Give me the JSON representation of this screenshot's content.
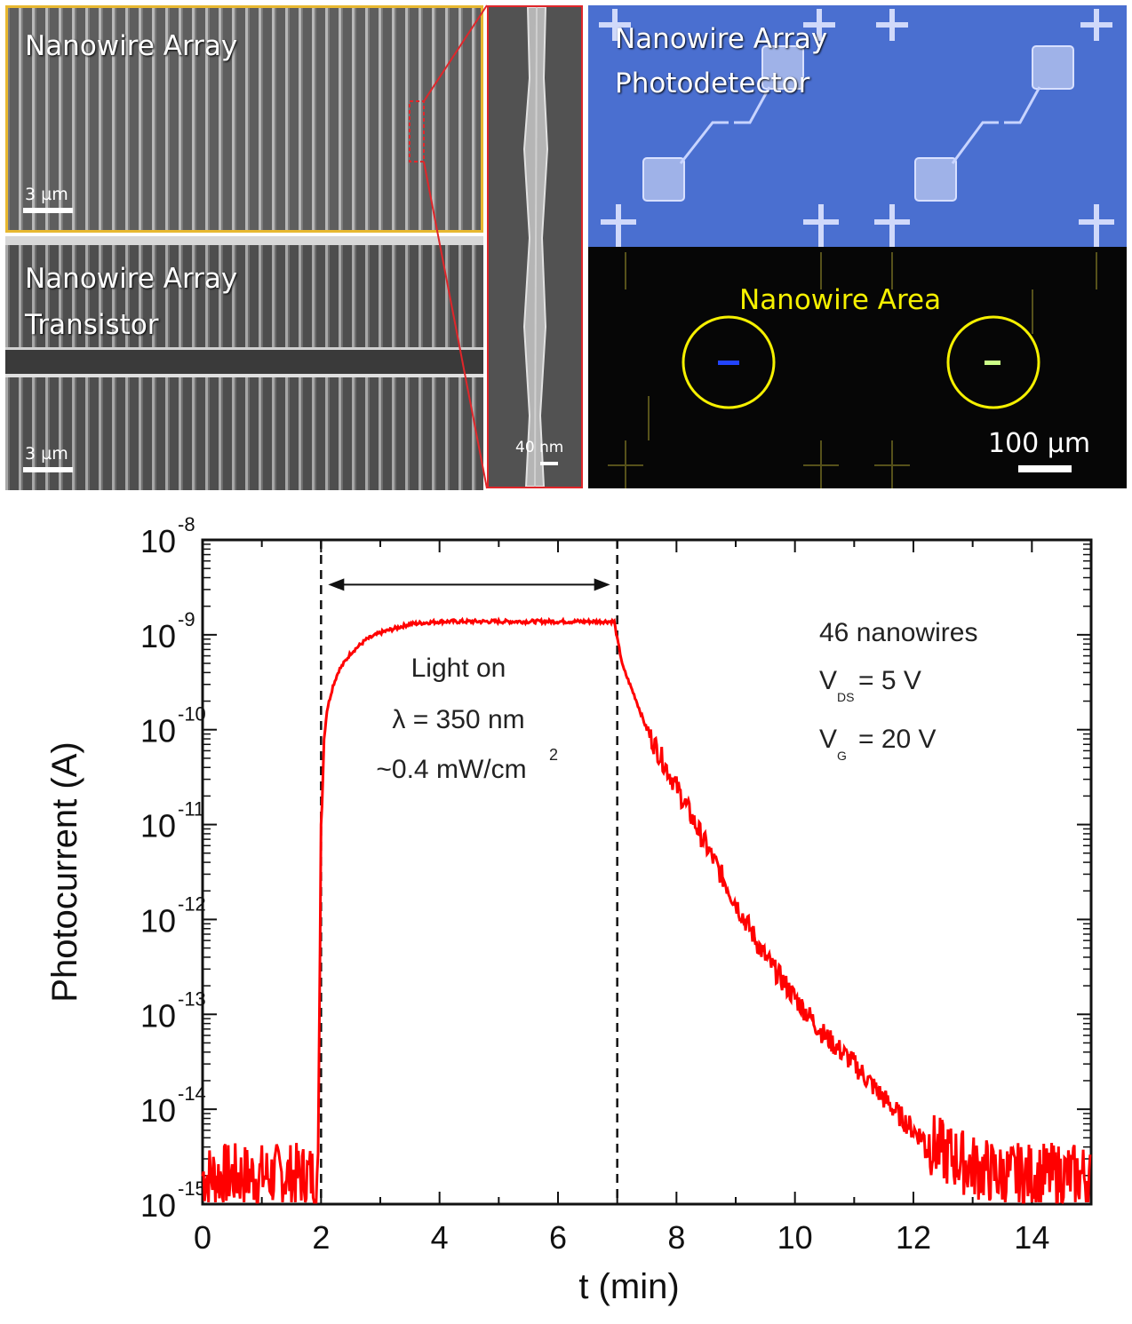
{
  "panels": {
    "sem_array": {
      "label": "Nanowire Array",
      "scale_label": "3 µm"
    },
    "sem_transistor": {
      "label_line1": "Nanowire Array",
      "label_line2": "Transistor",
      "scale_label": "3 µm"
    },
    "sem_zoom": {
      "scale_label": "40 nm"
    },
    "optical": {
      "label_line1": "Nanowire Array",
      "label_line2": "Photodetector",
      "area_label": "Nanowire Area",
      "scale_label": "100 µm"
    }
  },
  "colors": {
    "trace": "#ff0000",
    "highlight_gold": "#e8b830",
    "zoom_frame": "#e0262a",
    "area_circle": "#f5f000",
    "optical_blue": "#4a6fd0"
  },
  "chart_data": {
    "type": "line",
    "ylabel": "Photocurrent (A)",
    "xlabel": "t (min)",
    "xlim": [
      0,
      15
    ],
    "ylim": [
      1e-15,
      1e-08
    ],
    "yscale": "log",
    "x_ticks": [
      "0",
      "2",
      "4",
      "6",
      "8",
      "10",
      "12",
      "14"
    ],
    "y_ticks": [
      {
        "base": "10",
        "exp": "-8"
      },
      {
        "base": "10",
        "exp": "-9"
      },
      {
        "base": "10",
        "exp": "-10"
      },
      {
        "base": "10",
        "exp": "-11"
      },
      {
        "base": "10",
        "exp": "-12"
      },
      {
        "base": "10",
        "exp": "-13"
      },
      {
        "base": "10",
        "exp": "-14"
      },
      {
        "base": "10",
        "exp": "-15"
      }
    ],
    "dashed_lines_x": [
      2,
      7
    ],
    "annotations": {
      "light_on": "Light on",
      "wavelength": "λ = 350 nm",
      "power_prefix": "~0.4 mW/cm",
      "power_exp": "2",
      "nanowires": "46 nanowires",
      "vds_prefix": "V",
      "vds_sub": "DS",
      "vds_suffix": " = 5 V",
      "vg_prefix": "V",
      "vg_sub": "G",
      "vg_suffix": " = 20 V"
    },
    "series": [
      {
        "x": [
          0,
          0.5,
          1,
          1.5,
          1.95,
          2.0,
          2.05,
          2.1,
          2.2,
          2.3,
          2.5,
          2.75,
          3.0,
          3.5,
          4,
          5,
          6,
          6.95,
          7.0,
          7.1,
          7.3,
          7.5,
          8,
          8.5,
          9,
          9.5,
          10,
          10.5,
          11,
          11.5,
          12,
          12.5,
          13,
          13.5,
          14,
          14.5,
          15
        ],
        "y": [
          2e-15,
          2e-15,
          2e-15,
          2e-15,
          2e-15,
          1e-11,
          8e-11,
          1.6e-10,
          2.9e-10,
          4.2e-10,
          6.4e-10,
          8.8e-10,
          1.05e-09,
          1.3e-09,
          1.38e-09,
          1.38e-09,
          1.38e-09,
          1.38e-09,
          9e-10,
          4.5e-10,
          2.2e-10,
          1e-10,
          2.5e-11,
          6e-12,
          1.5e-12,
          4e-13,
          1.5e-13,
          6e-14,
          3e-14,
          1.3e-14,
          6e-15,
          3.5e-15,
          2.5e-15,
          2e-15,
          2e-15,
          2e-15,
          2e-15
        ]
      }
    ]
  }
}
